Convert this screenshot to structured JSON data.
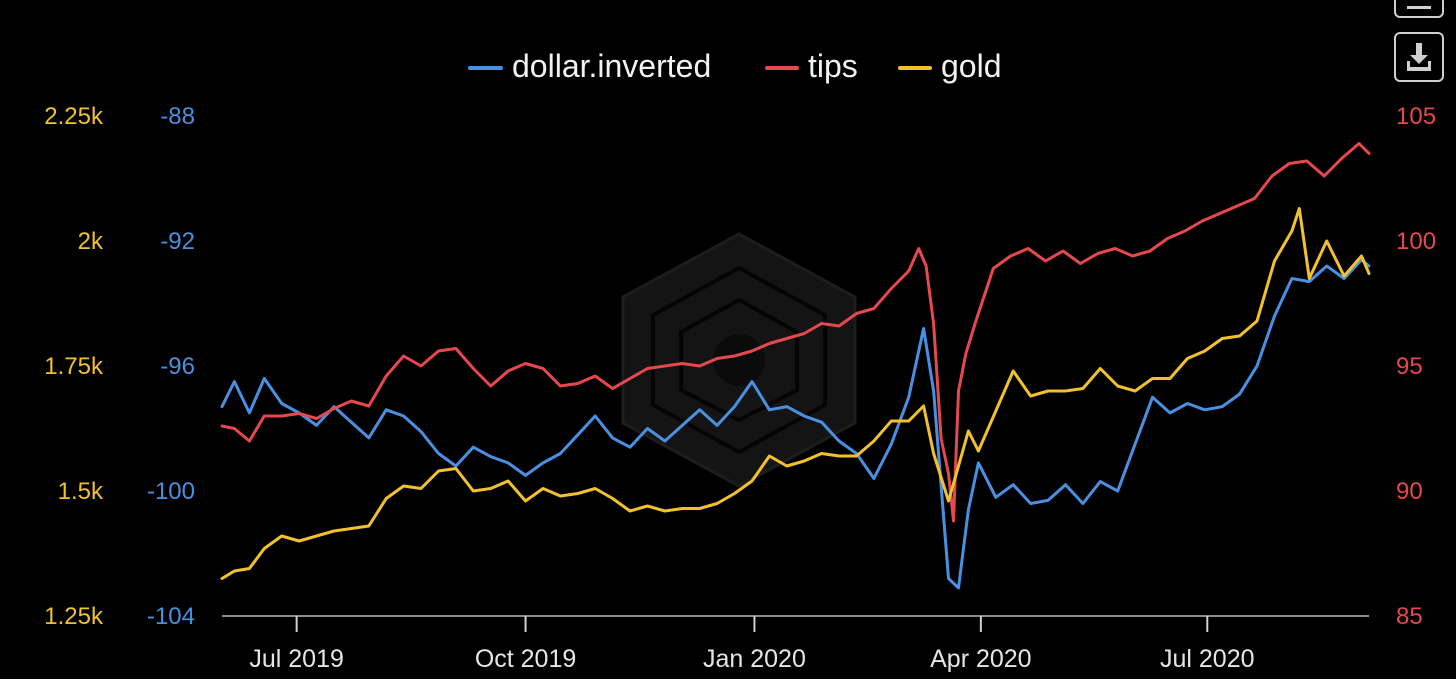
{
  "chart_data": {
    "type": "line",
    "x_ticks": [
      "Jul 2019",
      "Oct 2019",
      "Jan 2020",
      "Apr 2020",
      "Jul 2020"
    ],
    "x_tick_dates": [
      "2019-07-01",
      "2019-10-01",
      "2020-01-01",
      "2020-04-01",
      "2020-07-01"
    ],
    "x_range": [
      "2019-06-01",
      "2020-09-04"
    ],
    "axes": {
      "gold": {
        "side": "left-outer",
        "ticks": [
          "2.25k",
          "2k",
          "1.75k",
          "1.5k",
          "1.25k"
        ],
        "range": [
          1250,
          2250
        ],
        "color": "#f2c12e"
      },
      "dollar_inverted": {
        "side": "left-inner",
        "ticks": [
          "-88",
          "-92",
          "-96",
          "-100",
          "-104"
        ],
        "range": [
          -104,
          -88
        ],
        "color": "#4a90e2"
      },
      "tips": {
        "side": "right",
        "ticks": [
          "105",
          "100",
          "95",
          "90",
          "85"
        ],
        "range": [
          85,
          105
        ],
        "color": "#e5484d"
      }
    },
    "legend": {
      "placement": "top-center",
      "entries": [
        "dollar.inverted",
        "tips",
        "gold"
      ]
    },
    "grid": false,
    "series": [
      {
        "name": "dollar.inverted",
        "axis": "dollar_inverted",
        "color": "#4a90e2",
        "points": [
          [
            "2019-06-01",
            -97.3
          ],
          [
            "2019-06-06",
            -96.5
          ],
          [
            "2019-06-12",
            -97.5
          ],
          [
            "2019-06-18",
            -96.4
          ],
          [
            "2019-06-25",
            -97.2
          ],
          [
            "2019-07-02",
            -97.5
          ],
          [
            "2019-07-09",
            -97.9
          ],
          [
            "2019-07-16",
            -97.3
          ],
          [
            "2019-07-23",
            -97.8
          ],
          [
            "2019-07-30",
            -98.3
          ],
          [
            "2019-08-06",
            -97.4
          ],
          [
            "2019-08-13",
            -97.6
          ],
          [
            "2019-08-20",
            -98.1
          ],
          [
            "2019-08-27",
            -98.8
          ],
          [
            "2019-09-03",
            -99.2
          ],
          [
            "2019-09-10",
            -98.6
          ],
          [
            "2019-09-17",
            -98.9
          ],
          [
            "2019-09-24",
            -99.1
          ],
          [
            "2019-10-01",
            -99.5
          ],
          [
            "2019-10-08",
            -99.1
          ],
          [
            "2019-10-15",
            -98.8
          ],
          [
            "2019-10-22",
            -98.2
          ],
          [
            "2019-10-29",
            -97.6
          ],
          [
            "2019-11-05",
            -98.3
          ],
          [
            "2019-11-12",
            -98.6
          ],
          [
            "2019-11-19",
            -98.0
          ],
          [
            "2019-11-26",
            -98.4
          ],
          [
            "2019-12-03",
            -97.9
          ],
          [
            "2019-12-10",
            -97.4
          ],
          [
            "2019-12-17",
            -97.9
          ],
          [
            "2019-12-24",
            -97.3
          ],
          [
            "2019-12-31",
            -96.5
          ],
          [
            "2020-01-07",
            -97.4
          ],
          [
            "2020-01-14",
            -97.3
          ],
          [
            "2020-01-21",
            -97.6
          ],
          [
            "2020-01-28",
            -97.8
          ],
          [
            "2020-02-04",
            -98.4
          ],
          [
            "2020-02-11",
            -98.8
          ],
          [
            "2020-02-18",
            -99.6
          ],
          [
            "2020-02-25",
            -98.5
          ],
          [
            "2020-03-03",
            -97.0
          ],
          [
            "2020-03-09",
            -94.8
          ],
          [
            "2020-03-13",
            -96.8
          ],
          [
            "2020-03-19",
            -102.8
          ],
          [
            "2020-03-23",
            -103.1
          ],
          [
            "2020-03-27",
            -100.6
          ],
          [
            "2020-03-31",
            -99.1
          ],
          [
            "2020-04-07",
            -100.2
          ],
          [
            "2020-04-14",
            -99.8
          ],
          [
            "2020-04-21",
            -100.4
          ],
          [
            "2020-04-28",
            -100.3
          ],
          [
            "2020-05-05",
            -99.8
          ],
          [
            "2020-05-12",
            -100.4
          ],
          [
            "2020-05-19",
            -99.7
          ],
          [
            "2020-05-26",
            -100.0
          ],
          [
            "2020-06-02",
            -98.5
          ],
          [
            "2020-06-09",
            -97.0
          ],
          [
            "2020-06-16",
            -97.5
          ],
          [
            "2020-06-23",
            -97.2
          ],
          [
            "2020-06-30",
            -97.4
          ],
          [
            "2020-07-07",
            -97.3
          ],
          [
            "2020-07-14",
            -96.9
          ],
          [
            "2020-07-21",
            -96.0
          ],
          [
            "2020-07-28",
            -94.4
          ],
          [
            "2020-08-04",
            -93.2
          ],
          [
            "2020-08-11",
            -93.3
          ],
          [
            "2020-08-18",
            -92.8
          ],
          [
            "2020-08-25",
            -93.2
          ],
          [
            "2020-09-01",
            -92.6
          ],
          [
            "2020-09-04",
            -92.8
          ]
        ]
      },
      {
        "name": "tips",
        "axis": "tips",
        "color": "#e5484d",
        "points": [
          [
            "2019-06-01",
            92.6
          ],
          [
            "2019-06-06",
            92.5
          ],
          [
            "2019-06-12",
            92.0
          ],
          [
            "2019-06-18",
            93.0
          ],
          [
            "2019-06-25",
            93.0
          ],
          [
            "2019-07-02",
            93.1
          ],
          [
            "2019-07-09",
            92.9
          ],
          [
            "2019-07-16",
            93.3
          ],
          [
            "2019-07-23",
            93.6
          ],
          [
            "2019-07-30",
            93.4
          ],
          [
            "2019-08-06",
            94.6
          ],
          [
            "2019-08-13",
            95.4
          ],
          [
            "2019-08-20",
            95.0
          ],
          [
            "2019-08-27",
            95.6
          ],
          [
            "2019-09-03",
            95.7
          ],
          [
            "2019-09-10",
            94.9
          ],
          [
            "2019-09-17",
            94.2
          ],
          [
            "2019-09-24",
            94.8
          ],
          [
            "2019-10-01",
            95.1
          ],
          [
            "2019-10-08",
            94.9
          ],
          [
            "2019-10-15",
            94.2
          ],
          [
            "2019-10-22",
            94.3
          ],
          [
            "2019-10-29",
            94.6
          ],
          [
            "2019-11-05",
            94.1
          ],
          [
            "2019-11-12",
            94.5
          ],
          [
            "2019-11-19",
            94.9
          ],
          [
            "2019-11-26",
            95.0
          ],
          [
            "2019-12-03",
            95.1
          ],
          [
            "2019-12-10",
            95.0
          ],
          [
            "2019-12-17",
            95.3
          ],
          [
            "2019-12-24",
            95.4
          ],
          [
            "2019-12-31",
            95.6
          ],
          [
            "2020-01-07",
            95.9
          ],
          [
            "2020-01-14",
            96.1
          ],
          [
            "2020-01-21",
            96.3
          ],
          [
            "2020-01-28",
            96.7
          ],
          [
            "2020-02-04",
            96.6
          ],
          [
            "2020-02-11",
            97.1
          ],
          [
            "2020-02-18",
            97.3
          ],
          [
            "2020-02-25",
            98.1
          ],
          [
            "2020-03-03",
            98.8
          ],
          [
            "2020-03-07",
            99.7
          ],
          [
            "2020-03-10",
            99.0
          ],
          [
            "2020-03-13",
            96.7
          ],
          [
            "2020-03-16",
            92.1
          ],
          [
            "2020-03-19",
            90.7
          ],
          [
            "2020-03-21",
            88.8
          ],
          [
            "2020-03-23",
            94.0
          ],
          [
            "2020-03-26",
            95.5
          ],
          [
            "2020-03-30",
            96.8
          ],
          [
            "2020-04-06",
            98.9
          ],
          [
            "2020-04-13",
            99.4
          ],
          [
            "2020-04-20",
            99.7
          ],
          [
            "2020-04-27",
            99.2
          ],
          [
            "2020-05-04",
            99.6
          ],
          [
            "2020-05-11",
            99.1
          ],
          [
            "2020-05-18",
            99.5
          ],
          [
            "2020-05-25",
            99.7
          ],
          [
            "2020-06-01",
            99.4
          ],
          [
            "2020-06-08",
            99.6
          ],
          [
            "2020-06-15",
            100.1
          ],
          [
            "2020-06-22",
            100.4
          ],
          [
            "2020-06-29",
            100.8
          ],
          [
            "2020-07-06",
            101.1
          ],
          [
            "2020-07-13",
            101.4
          ],
          [
            "2020-07-20",
            101.7
          ],
          [
            "2020-07-27",
            102.6
          ],
          [
            "2020-08-03",
            103.1
          ],
          [
            "2020-08-10",
            103.2
          ],
          [
            "2020-08-17",
            102.6
          ],
          [
            "2020-08-24",
            103.3
          ],
          [
            "2020-08-31",
            103.9
          ],
          [
            "2020-09-04",
            103.5
          ]
        ]
      },
      {
        "name": "gold",
        "axis": "gold",
        "color": "#f2c12e",
        "points": [
          [
            "2019-06-01",
            1325
          ],
          [
            "2019-06-06",
            1340
          ],
          [
            "2019-06-12",
            1345
          ],
          [
            "2019-06-18",
            1385
          ],
          [
            "2019-06-25",
            1410
          ],
          [
            "2019-07-02",
            1400
          ],
          [
            "2019-07-09",
            1410
          ],
          [
            "2019-07-16",
            1420
          ],
          [
            "2019-07-23",
            1425
          ],
          [
            "2019-07-30",
            1430
          ],
          [
            "2019-08-06",
            1485
          ],
          [
            "2019-08-13",
            1510
          ],
          [
            "2019-08-20",
            1505
          ],
          [
            "2019-08-27",
            1540
          ],
          [
            "2019-09-03",
            1545
          ],
          [
            "2019-09-10",
            1500
          ],
          [
            "2019-09-17",
            1505
          ],
          [
            "2019-09-24",
            1520
          ],
          [
            "2019-10-01",
            1480
          ],
          [
            "2019-10-08",
            1505
          ],
          [
            "2019-10-15",
            1490
          ],
          [
            "2019-10-22",
            1495
          ],
          [
            "2019-10-29",
            1505
          ],
          [
            "2019-11-05",
            1485
          ],
          [
            "2019-11-12",
            1460
          ],
          [
            "2019-11-19",
            1470
          ],
          [
            "2019-11-26",
            1460
          ],
          [
            "2019-12-03",
            1465
          ],
          [
            "2019-12-10",
            1465
          ],
          [
            "2019-12-17",
            1475
          ],
          [
            "2019-12-24",
            1495
          ],
          [
            "2019-12-31",
            1520
          ],
          [
            "2020-01-07",
            1570
          ],
          [
            "2020-01-14",
            1550
          ],
          [
            "2020-01-21",
            1560
          ],
          [
            "2020-01-28",
            1575
          ],
          [
            "2020-02-04",
            1570
          ],
          [
            "2020-02-11",
            1570
          ],
          [
            "2020-02-18",
            1600
          ],
          [
            "2020-02-25",
            1640
          ],
          [
            "2020-03-03",
            1640
          ],
          [
            "2020-03-09",
            1670
          ],
          [
            "2020-03-13",
            1575
          ],
          [
            "2020-03-19",
            1480
          ],
          [
            "2020-03-23",
            1550
          ],
          [
            "2020-03-27",
            1620
          ],
          [
            "2020-03-31",
            1580
          ],
          [
            "2020-04-07",
            1660
          ],
          [
            "2020-04-14",
            1740
          ],
          [
            "2020-04-21",
            1690
          ],
          [
            "2020-04-28",
            1700
          ],
          [
            "2020-05-05",
            1700
          ],
          [
            "2020-05-12",
            1705
          ],
          [
            "2020-05-19",
            1745
          ],
          [
            "2020-05-26",
            1710
          ],
          [
            "2020-06-02",
            1700
          ],
          [
            "2020-06-09",
            1725
          ],
          [
            "2020-06-16",
            1725
          ],
          [
            "2020-06-23",
            1765
          ],
          [
            "2020-06-30",
            1780
          ],
          [
            "2020-07-07",
            1805
          ],
          [
            "2020-07-14",
            1810
          ],
          [
            "2020-07-21",
            1840
          ],
          [
            "2020-07-28",
            1960
          ],
          [
            "2020-08-04",
            2020
          ],
          [
            "2020-08-07",
            2065
          ],
          [
            "2020-08-11",
            1925
          ],
          [
            "2020-08-18",
            2000
          ],
          [
            "2020-08-25",
            1930
          ],
          [
            "2020-09-01",
            1970
          ],
          [
            "2020-09-04",
            1935
          ]
        ]
      }
    ]
  }
}
